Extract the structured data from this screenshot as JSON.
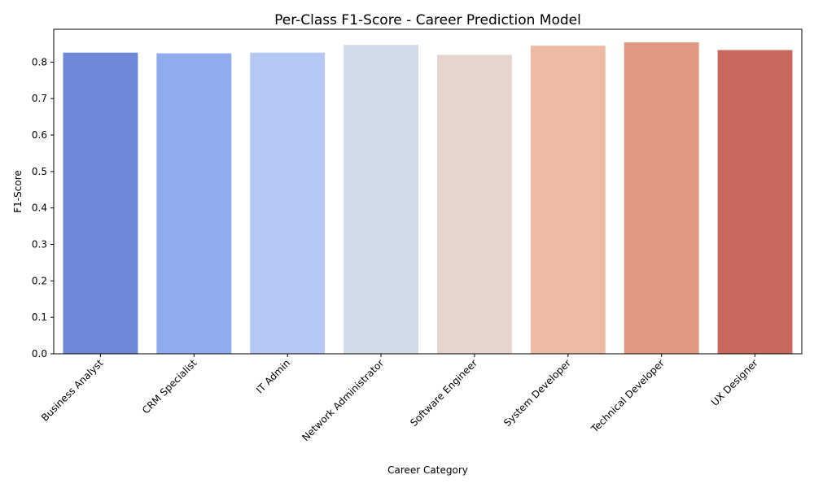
{
  "chart_data": {
    "type": "bar",
    "title": "Per-Class F1-Score - Career Prediction Model",
    "xlabel": "Career Category",
    "ylabel": "F1-Score",
    "categories": [
      "Business Analyst",
      "CRM Specialist",
      "IT Admin",
      "Network Administrator",
      "Software Engineer",
      "System Developer",
      "Technical Developer",
      "UX Designer"
    ],
    "values": [
      0.826,
      0.824,
      0.826,
      0.847,
      0.82,
      0.845,
      0.854,
      0.833
    ],
    "colors": [
      "#6f87d8",
      "#90acef",
      "#b5c9f4",
      "#d1dbe9",
      "#e6d5cd",
      "#edbba4",
      "#e29880",
      "#c7695d"
    ],
    "ylim": [
      0,
      0.89
    ],
    "yticks": [
      "0.0",
      "0.1",
      "0.2",
      "0.3",
      "0.4",
      "0.5",
      "0.6",
      "0.7",
      "0.8"
    ],
    "grid": false,
    "legend": "none"
  }
}
